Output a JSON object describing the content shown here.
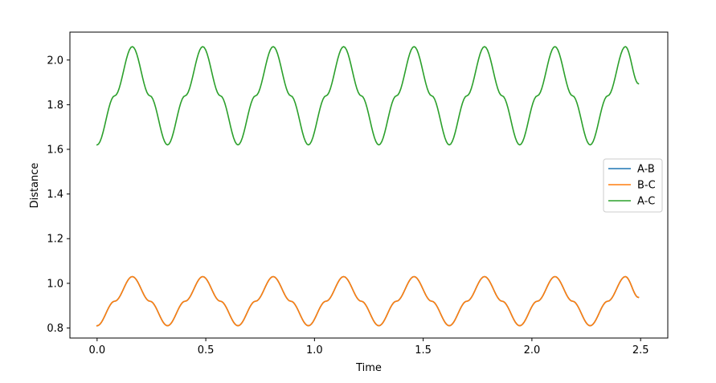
{
  "chart_data": {
    "type": "line",
    "title": "",
    "xlabel": "Time",
    "ylabel": "Distance",
    "xlim": [
      -0.125,
      2.625
    ],
    "ylim": [
      0.755,
      2.125
    ],
    "xticks": [
      0.0,
      0.5,
      1.0,
      1.5,
      2.0,
      2.5
    ],
    "xtick_labels": [
      "0.0",
      "0.5",
      "1.0",
      "1.5",
      "2.0",
      "2.5"
    ],
    "yticks": [
      0.8,
      1.0,
      1.2,
      1.4,
      1.6,
      1.8,
      2.0
    ],
    "ytick_labels": [
      "0.8",
      "1.0",
      "1.2",
      "1.4",
      "1.6",
      "1.8",
      "2.0"
    ],
    "grid": false,
    "legend_position": "center-right",
    "series": [
      {
        "name": "A-B",
        "color": "#1f77b4",
        "x": [
          0.0,
          0.081,
          0.162,
          0.243,
          0.324,
          0.405,
          0.486,
          0.567,
          0.648,
          0.729,
          0.81,
          0.891,
          0.972,
          1.053,
          1.134,
          1.215,
          1.296,
          1.377,
          1.458,
          1.539,
          1.62,
          1.701,
          1.782,
          1.863,
          1.944,
          2.025,
          2.106,
          2.187,
          2.268,
          2.349,
          2.43,
          2.49
        ],
        "y": [
          0.81,
          0.92,
          1.03,
          0.92,
          0.81,
          0.92,
          1.03,
          0.92,
          0.81,
          0.92,
          1.03,
          0.92,
          0.81,
          0.92,
          1.03,
          0.92,
          0.81,
          0.92,
          1.03,
          0.92,
          0.81,
          0.92,
          1.03,
          0.92,
          0.81,
          0.92,
          1.03,
          0.92,
          0.81,
          0.92,
          1.03,
          0.937
        ]
      },
      {
        "name": "B-C",
        "color": "#ff7f0e",
        "x": [
          0.0,
          0.081,
          0.162,
          0.243,
          0.324,
          0.405,
          0.486,
          0.567,
          0.648,
          0.729,
          0.81,
          0.891,
          0.972,
          1.053,
          1.134,
          1.215,
          1.296,
          1.377,
          1.458,
          1.539,
          1.62,
          1.701,
          1.782,
          1.863,
          1.944,
          2.025,
          2.106,
          2.187,
          2.268,
          2.349,
          2.43,
          2.49
        ],
        "y": [
          0.81,
          0.92,
          1.03,
          0.92,
          0.81,
          0.92,
          1.03,
          0.92,
          0.81,
          0.92,
          1.03,
          0.92,
          0.81,
          0.92,
          1.03,
          0.92,
          0.81,
          0.92,
          1.03,
          0.92,
          0.81,
          0.92,
          1.03,
          0.92,
          0.81,
          0.92,
          1.03,
          0.92,
          0.81,
          0.92,
          1.03,
          0.937
        ]
      },
      {
        "name": "A-C",
        "color": "#2ca02c",
        "x": [
          0.0,
          0.081,
          0.162,
          0.243,
          0.324,
          0.405,
          0.486,
          0.567,
          0.648,
          0.729,
          0.81,
          0.891,
          0.972,
          1.053,
          1.134,
          1.215,
          1.296,
          1.377,
          1.458,
          1.539,
          1.62,
          1.701,
          1.782,
          1.863,
          1.944,
          2.025,
          2.106,
          2.187,
          2.268,
          2.349,
          2.43,
          2.49
        ],
        "y": [
          1.62,
          1.84,
          2.06,
          1.84,
          1.62,
          1.84,
          2.06,
          1.84,
          1.62,
          1.84,
          2.06,
          1.84,
          1.62,
          1.84,
          2.06,
          1.84,
          1.62,
          1.84,
          2.06,
          1.84,
          1.62,
          1.84,
          2.06,
          1.84,
          1.62,
          1.84,
          2.06,
          1.84,
          1.62,
          1.84,
          2.06,
          1.894
        ]
      }
    ]
  }
}
